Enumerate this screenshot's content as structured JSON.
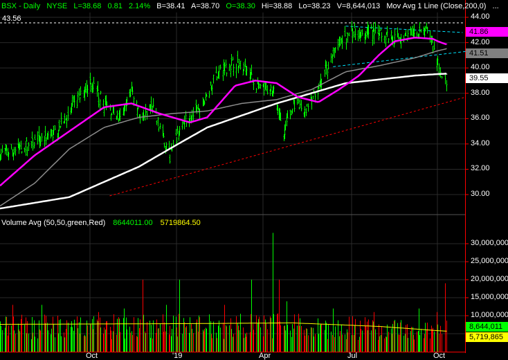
{
  "header": {
    "symbol": "BSX - Daily",
    "exchange": "NYSE",
    "last": "L=38.68",
    "change": "0.81",
    "change_pct": "2.14%",
    "bid": "B=38.41",
    "ask": "A=38.70",
    "open": "O=38.30",
    "high": "Hi=38.88",
    "low": "Lo=38.23",
    "volume": "V=8,644,013",
    "study": "Mov Avg 1 Line (Close,200,0)",
    "more": "..."
  },
  "resistance_level_label": "43.56",
  "price_axis": {
    "ticks": [
      "44.00",
      "42.00",
      "40.00",
      "38.00",
      "36.00",
      "34.00",
      "32.00",
      "30.00"
    ]
  },
  "price_tags": [
    {
      "value": "41.86",
      "bg": "#ff00ff",
      "fg": "#000000"
    },
    {
      "value": "41.51",
      "bg": "#808080",
      "fg": "#000000"
    },
    {
      "value": "39.55",
      "bg": "#ffffff",
      "fg": "#000000"
    }
  ],
  "volume_header": {
    "title": "Volume Avg (50,50,green,Red)",
    "volume": "8644011.00",
    "average": "5719864.50"
  },
  "volume_axis": {
    "ticks": [
      "30,000,000",
      "25,000,000",
      "20,000,000",
      "15,000,000",
      "10,000,000"
    ]
  },
  "volume_tags": [
    {
      "value": "8,644,011",
      "bg": "#00ff00",
      "fg": "#000000"
    },
    {
      "value": "5,719,865",
      "bg": "#ffff00",
      "fg": "#000000"
    }
  ],
  "x_axis": {
    "labels": [
      "Oct",
      "'19",
      "Apr",
      "Jul",
      "Oct"
    ]
  },
  "colors": {
    "up": "#00ff00",
    "down": "#ff0000",
    "ma_200": "#ffffff",
    "ma_gray": "#8c8c8c",
    "ma_magenta": "#ff00ff",
    "trend_support": "#ff0000",
    "channel": "#00e5ff",
    "grid": "#2a2a2a",
    "axis": "#ff0000"
  },
  "chart_data": {
    "type": "ohlc",
    "price_ylim": [
      28.5,
      44.8
    ],
    "volume_ylim": [
      0,
      33500000
    ],
    "closes": [
      [
        "2018-06-27",
        33.2
      ],
      [
        "2018-07-27",
        33.9
      ],
      [
        "2018-08-25",
        35.0
      ],
      [
        "2018-09-16",
        37.2
      ],
      [
        "2018-10-01",
        39.0
      ],
      [
        "2018-10-16",
        37.2
      ],
      [
        "2018-11-03",
        35.8
      ],
      [
        "2018-11-14",
        38.3
      ],
      [
        "2018-11-25",
        35.8
      ],
      [
        "2018-12-06",
        36.9
      ],
      [
        "2018-12-25",
        33.0
      ],
      [
        "2019-01-08",
        36.0
      ],
      [
        "2019-01-26",
        36.6
      ],
      [
        "2019-02-10",
        39.4
      ],
      [
        "2019-03-03",
        40.5
      ],
      [
        "2019-03-14",
        39.9
      ],
      [
        "2019-03-28",
        38.3
      ],
      [
        "2019-04-12",
        38.3
      ],
      [
        "2019-04-22",
        35.0
      ],
      [
        "2019-05-03",
        37.2
      ],
      [
        "2019-05-14",
        36.6
      ],
      [
        "2019-05-28",
        38.3
      ],
      [
        "2019-06-08",
        40.5
      ],
      [
        "2019-06-18",
        41.8
      ],
      [
        "2019-07-02",
        42.9
      ],
      [
        "2019-07-25",
        42.9
      ],
      [
        "2019-08-16",
        42.4
      ],
      [
        "2019-09-07",
        42.6
      ],
      [
        "2019-09-22",
        42.9
      ],
      [
        "2019-09-30",
        40.5
      ],
      [
        "2019-10-08",
        38.68
      ]
    ],
    "ma_200": [
      [
        "2018-06-27",
        28.9
      ],
      [
        "2018-09-09",
        29.8
      ],
      [
        "2018-11-22",
        32.2
      ],
      [
        "2019-02-02",
        35.3
      ],
      [
        "2019-04-15",
        37.2
      ],
      [
        "2019-06-25",
        38.8
      ],
      [
        "2019-09-07",
        39.4
      ],
      [
        "2019-10-08",
        39.55
      ]
    ],
    "ma_gray": [
      [
        "2018-06-27",
        29.1
      ],
      [
        "2018-08-03",
        30.9
      ],
      [
        "2018-09-09",
        33.6
      ],
      [
        "2018-10-16",
        35.3
      ],
      [
        "2018-11-22",
        36.1
      ],
      [
        "2018-12-28",
        36.4
      ],
      [
        "2019-02-02",
        36.6
      ],
      [
        "2019-03-10",
        37.2
      ],
      [
        "2019-04-15",
        37.5
      ],
      [
        "2019-05-21",
        38.3
      ],
      [
        "2019-06-25",
        39.7
      ],
      [
        "2019-08-01",
        40.2
      ],
      [
        "2019-09-07",
        40.8
      ],
      [
        "2019-10-08",
        41.51
      ]
    ],
    "ma_magenta": [
      [
        "2018-06-27",
        30.7
      ],
      [
        "2018-08-03",
        33.1
      ],
      [
        "2018-09-09",
        35.0
      ],
      [
        "2018-10-16",
        36.9
      ],
      [
        "2018-11-14",
        37.2
      ],
      [
        "2018-12-14",
        36.4
      ],
      [
        "2019-01-15",
        35.7
      ],
      [
        "2019-02-02",
        36.1
      ],
      [
        "2019-03-03",
        38.6
      ],
      [
        "2019-03-24",
        39.0
      ],
      [
        "2019-04-15",
        38.8
      ],
      [
        "2019-05-07",
        37.7
      ],
      [
        "2019-05-28",
        37.3
      ],
      [
        "2019-06-18",
        38.3
      ],
      [
        "2019-07-09",
        39.4
      ],
      [
        "2019-07-30",
        41.0
      ],
      [
        "2019-08-16",
        42.1
      ],
      [
        "2019-09-07",
        42.4
      ],
      [
        "2019-09-26",
        42.3
      ],
      [
        "2019-10-08",
        41.86
      ]
    ],
    "trend_support": [
      [
        "2018-10-22",
        29.9
      ],
      [
        "2019-10-27",
        37.7
      ]
    ],
    "channel_top": [
      [
        "2019-06-25",
        43.3
      ],
      [
        "2019-10-24",
        42.8
      ]
    ],
    "channel_bottom": [
      [
        "2019-06-12",
        40.1
      ],
      [
        "2019-10-27",
        41.3
      ]
    ],
    "resistance": 43.56,
    "volume_avg": [
      [
        "2018-06-27",
        7600000.0
      ],
      [
        "2019-01-15",
        7800000.0
      ],
      [
        "2019-05-01",
        8000000.0
      ],
      [
        "2019-08-01",
        7000000.0
      ],
      [
        "2019-10-08",
        5720000.0
      ]
    ],
    "volume_spikes": [
      [
        "2018-07-10",
        13000000.0
      ],
      [
        "2018-08-10",
        13000000.0
      ],
      [
        "2018-10-10",
        11000000.0
      ],
      [
        "2018-11-06",
        12000000.0
      ],
      [
        "2018-11-26",
        20000000.0
      ],
      [
        "2018-12-21",
        13000000.0
      ],
      [
        "2019-01-04",
        20000000.0
      ],
      [
        "2019-02-20",
        13000000.0
      ],
      [
        "2019-03-20",
        20000000.0
      ],
      [
        "2019-04-11",
        33000000.0
      ],
      [
        "2019-04-17",
        20000000.0
      ],
      [
        "2019-04-25",
        14000000.0
      ],
      [
        "2019-06-12",
        12000000.0
      ],
      [
        "2019-07-25",
        11000000.0
      ],
      [
        "2019-09-11",
        12000000.0
      ],
      [
        "2019-09-30",
        11000000.0
      ],
      [
        "2019-10-07",
        19000000.0
      ],
      [
        "2019-10-08",
        8640000.0
      ]
    ]
  }
}
